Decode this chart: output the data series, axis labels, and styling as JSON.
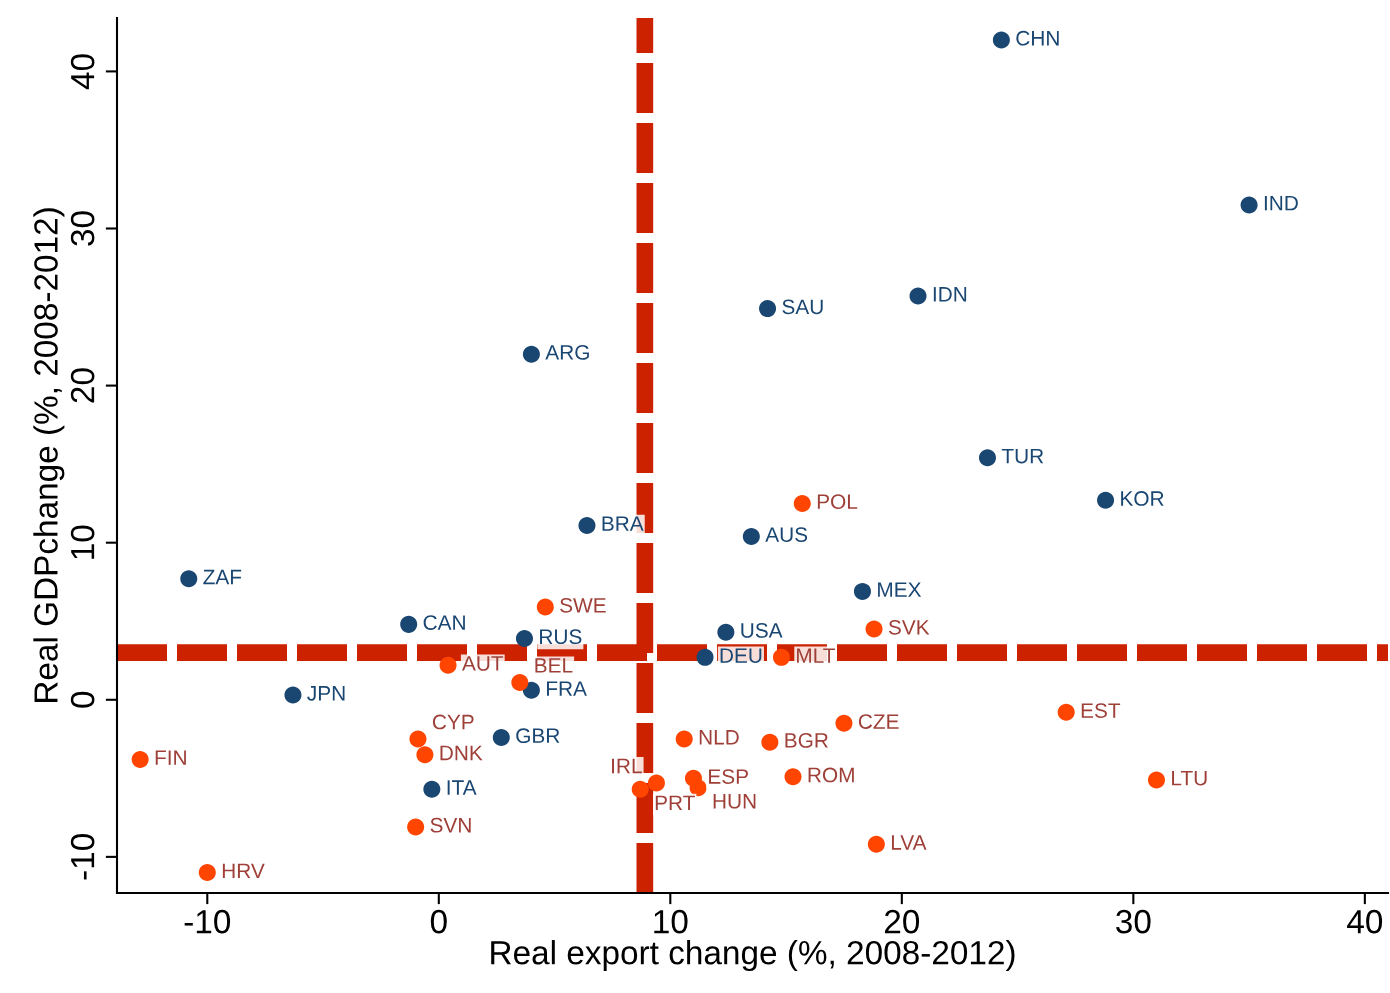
{
  "chart_data": {
    "type": "scatter",
    "xlabel": "Real export change (%, 2008-2012)",
    "ylabel": "Real GDPchange (%, 2008-2012)",
    "xlim": [
      -13.9,
      41.0
    ],
    "ylim": [
      -12.3,
      43.4
    ],
    "xticks": [
      -10,
      0,
      10,
      20,
      30,
      40
    ],
    "yticks": [
      -10,
      0,
      10,
      20,
      30,
      40
    ],
    "grid": false,
    "legend": false,
    "marker": "circle",
    "series": [
      {
        "color": "#1a4672",
        "x": [
          24.3,
          35.0,
          14.2,
          20.7,
          4.0,
          23.7,
          28.8,
          6.4,
          13.5,
          -10.8,
          18.3,
          -1.3,
          3.7,
          12.4,
          11.5,
          4.0,
          -6.3,
          2.7,
          -0.3
        ],
        "values": [
          42.0,
          31.5,
          24.9,
          25.7,
          22.0,
          15.4,
          12.7,
          11.1,
          10.4,
          7.7,
          6.9,
          4.8,
          3.9,
          4.3,
          2.7,
          0.6,
          0.3,
          -2.4,
          -5.7
        ]
      },
      {
        "color": "#ff4500",
        "x": [
          15.7,
          4.6,
          18.8,
          0.4,
          14.8,
          3.5,
          27.1,
          17.5,
          -0.9,
          -0.6,
          10.6,
          14.3,
          -12.9,
          15.3,
          31.0,
          11.0,
          11.2,
          9.4,
          8.7,
          -1.0,
          18.9,
          -10.0
        ],
        "values": [
          12.5,
          5.9,
          4.5,
          2.2,
          2.7,
          1.1,
          -0.8,
          -1.5,
          -2.5,
          -3.5,
          -2.5,
          -2.7,
          -3.8,
          -4.9,
          -5.1,
          -5.0,
          -5.6,
          -5.3,
          -5.7,
          -8.1,
          -9.2,
          -11.0
        ]
      }
    ],
    "ref_lines": [
      {
        "axis": "x",
        "value": 8.9,
        "color": "#cc2200",
        "line_style": "dashed"
      },
      {
        "axis": "y",
        "value": 3.0,
        "color": "#cc2200",
        "line_style": "dashed"
      }
    ],
    "annotations": [
      {
        "text": "CHN",
        "x": 24.3,
        "y": 42.0
      },
      {
        "text": "IND",
        "x": 35.0,
        "y": 31.5
      },
      {
        "text": "SAU",
        "x": 14.2,
        "y": 24.9
      },
      {
        "text": "IDN",
        "x": 20.7,
        "y": 25.7
      },
      {
        "text": "ARG",
        "x": 4.0,
        "y": 22.0
      },
      {
        "text": "TUR",
        "x": 23.7,
        "y": 15.4
      },
      {
        "text": "KOR",
        "x": 28.8,
        "y": 12.7
      },
      {
        "text": "BRA",
        "x": 6.4,
        "y": 11.1
      },
      {
        "text": "AUS",
        "x": 13.5,
        "y": 10.4
      },
      {
        "text": "ZAF",
        "x": -10.8,
        "y": 7.7
      },
      {
        "text": "MEX",
        "x": 18.3,
        "y": 6.9
      },
      {
        "text": "CAN",
        "x": -1.3,
        "y": 4.8
      },
      {
        "text": "RUS",
        "x": 3.7,
        "y": 3.9
      },
      {
        "text": "USA",
        "x": 12.4,
        "y": 4.3
      },
      {
        "text": "DEU",
        "x": 11.5,
        "y": 2.7
      },
      {
        "text": "FRA",
        "x": 4.0,
        "y": 0.6
      },
      {
        "text": "JPN",
        "x": -6.3,
        "y": 0.3
      },
      {
        "text": "GBR",
        "x": 2.7,
        "y": -2.4
      },
      {
        "text": "ITA",
        "x": -0.3,
        "y": -5.7
      },
      {
        "text": "POL",
        "x": 15.7,
        "y": 12.5
      },
      {
        "text": "SWE",
        "x": 4.6,
        "y": 5.9
      },
      {
        "text": "SVK",
        "x": 18.8,
        "y": 4.5
      },
      {
        "text": "AUT",
        "x": 0.4,
        "y": 2.2
      },
      {
        "text": "MLT",
        "x": 14.8,
        "y": 2.7
      },
      {
        "text": "BEL",
        "x": 3.5,
        "y": 1.1
      },
      {
        "text": "EST",
        "x": 27.1,
        "y": -0.8
      },
      {
        "text": "CZE",
        "x": 17.5,
        "y": -1.5
      },
      {
        "text": "CYP",
        "x": -0.9,
        "y": -2.5
      },
      {
        "text": "DNK",
        "x": -0.6,
        "y": -3.5
      },
      {
        "text": "NLD",
        "x": 10.6,
        "y": -2.5
      },
      {
        "text": "BGR",
        "x": 14.3,
        "y": -2.7
      },
      {
        "text": "FIN",
        "x": -12.9,
        "y": -3.8
      },
      {
        "text": "ROM",
        "x": 15.3,
        "y": -4.9
      },
      {
        "text": "LTU",
        "x": 31.0,
        "y": -5.1
      },
      {
        "text": "ESP",
        "x": 11.0,
        "y": -5.0
      },
      {
        "text": "HUN",
        "x": 11.2,
        "y": -5.6
      },
      {
        "text": "IRL",
        "x": 9.4,
        "y": -5.3
      },
      {
        "text": "PRT",
        "x": 8.7,
        "y": -5.7
      },
      {
        "text": "SVN",
        "x": -1.0,
        "y": -8.1
      },
      {
        "text": "LVA",
        "x": 18.9,
        "y": -9.2
      },
      {
        "text": "HRV",
        "x": -10.0,
        "y": -11.0
      }
    ]
  }
}
